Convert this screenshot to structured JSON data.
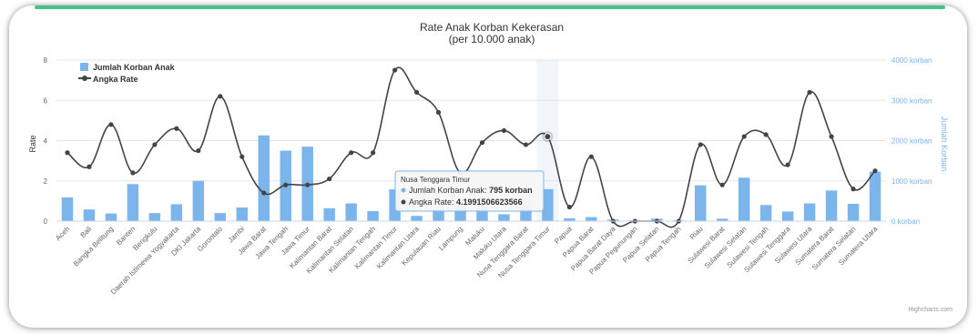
{
  "chart_data": {
    "type": "bar+line",
    "title": "Rate Anak Korban Kekerasan",
    "subtitle": "(per 10.000 anak)",
    "ylabel": "Rate",
    "y2label": "Jumlah Korban",
    "ylim": [
      0,
      8
    ],
    "yticks": [
      "0",
      "2",
      "4",
      "6",
      "8"
    ],
    "y2lim": [
      0,
      4000
    ],
    "y2ticks": [
      "0 korban",
      "1000 korban",
      "2000 korban",
      "3000 korban",
      "4000 korban"
    ],
    "legend_position": "top-left",
    "grid": true,
    "categories": [
      "Aceh",
      "Bali",
      "Bangka Belitung",
      "Banten",
      "Bengkulu",
      "Daerah Istimewa Yogyakarta",
      "DKI Jakarta",
      "Gorontalo",
      "Jambi",
      "Jawa Barat",
      "Jawa Tengah",
      "Jawa Timur",
      "Kalimantan Barat",
      "Kalimantan Selatan",
      "Kalimantan Tengah",
      "Kalimantan Timur",
      "Kalimantan Utara",
      "Kepulauan Riau",
      "Lampung",
      "Maluku",
      "Maluku Utara",
      "Nusa Tenggara Barat",
      "Nusa Tenggara Timur",
      "Papua",
      "Papua Barat",
      "Papua Barat Daya",
      "Papua Pegunungan",
      "Papua Selatan",
      "Papua Tengah",
      "Riau",
      "Sulawesi Barat",
      "Sulawesi Selatan",
      "Sulawesi Tengah",
      "Sulawesi Tenggara",
      "Sulawesi Utara",
      "Sumatera Barat",
      "Sumatera Selatan",
      "Sumatera Utara"
    ],
    "series": [
      {
        "name": "Jumlah Korban Anak",
        "type": "bar",
        "axis": "right",
        "color": "#7cb5ec",
        "values": [
          590,
          290,
          190,
          920,
          200,
          420,
          1000,
          200,
          340,
          2130,
          1750,
          1850,
          320,
          440,
          250,
          790,
          130,
          300,
          480,
          500,
          170,
          490,
          795,
          70,
          100,
          40,
          20,
          60,
          20,
          890,
          60,
          1080,
          400,
          240,
          440,
          760,
          430,
          1230
        ]
      },
      {
        "name": "Angka Rate",
        "type": "line",
        "axis": "left",
        "color": "#434348",
        "values": [
          3.4,
          2.7,
          4.8,
          2.4,
          3.8,
          4.6,
          3.5,
          6.2,
          3.2,
          1.4,
          1.8,
          1.8,
          2.1,
          3.4,
          3.4,
          7.5,
          6.4,
          5.4,
          2.4,
          3.9,
          4.5,
          3.8,
          4.1991506623566,
          0.7,
          3.2,
          0.0,
          0.0,
          0.0,
          0.0,
          3.8,
          1.8,
          4.2,
          4.3,
          2.8,
          6.4,
          4.2,
          1.6,
          2.5
        ]
      }
    ],
    "tooltip": {
      "category": "Nusa Tenggara Timur",
      "bar_label": "Jumlah Korban Anak: ",
      "bar_value": "795 korban",
      "line_label": "Angka Rate: ",
      "line_value": "4.1991506623566"
    },
    "highlight_index": 22,
    "credit": "Highcharts.com"
  }
}
